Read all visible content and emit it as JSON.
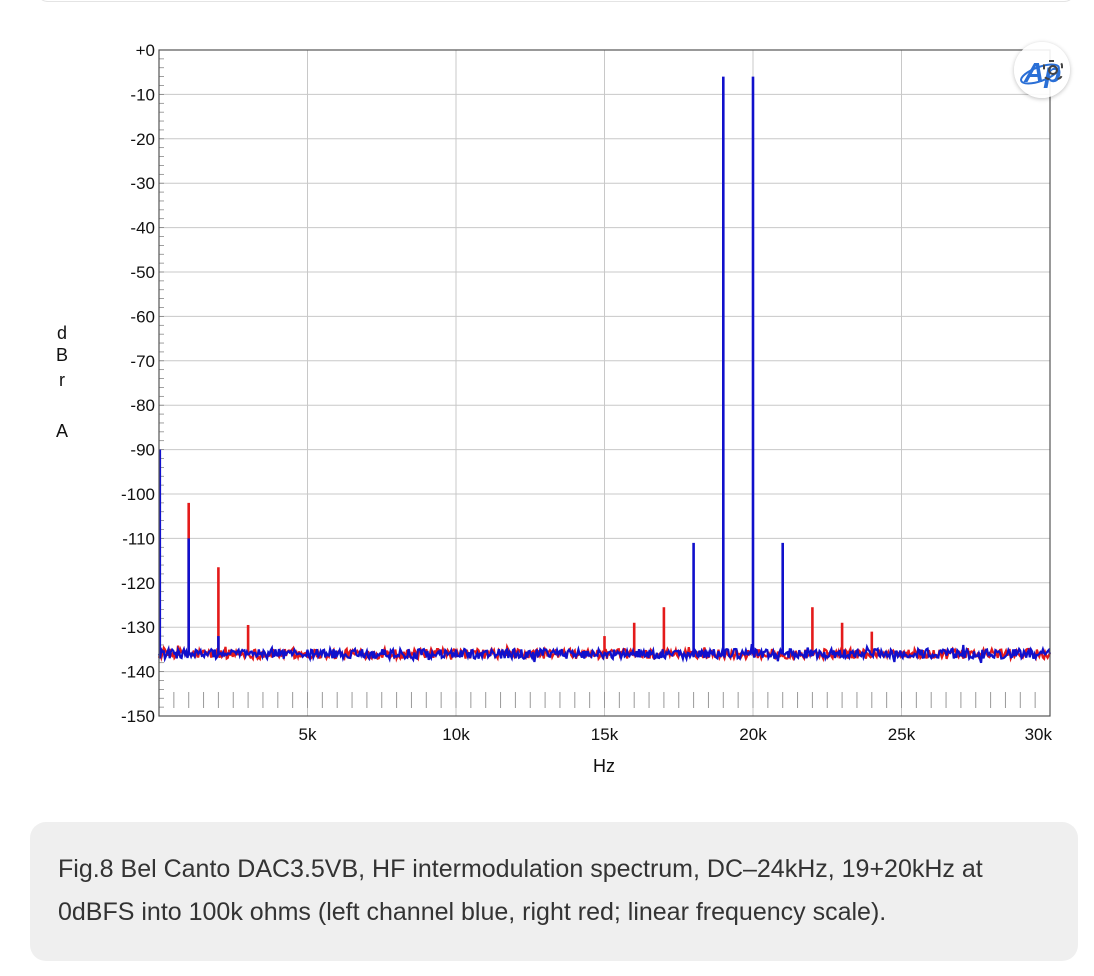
{
  "caption": "Fig.8 Bel Canto DAC3.5VB, HF intermodulation spectrum, DC–24kHz, 19+20kHz at 0dBFS into 100k ohms (left channel blue, right red; linear frequency scale).",
  "logo_text": "Ap",
  "chart_data": {
    "type": "line",
    "title": "",
    "xlabel": "Hz",
    "ylabel": "dBr A",
    "xlim": [
      0,
      30000
    ],
    "ylim": [
      -150,
      0
    ],
    "x_scale": "linear",
    "grid": true,
    "legend": "none",
    "yticks": [
      "+0",
      "-10",
      "-20",
      "-30",
      "-40",
      "-50",
      "-60",
      "-70",
      "-80",
      "-90",
      "-100",
      "-110",
      "-120",
      "-130",
      "-140",
      "-150"
    ],
    "xticks": [
      {
        "value": 5000,
        "label": "5k"
      },
      {
        "value": 10000,
        "label": "10k"
      },
      {
        "value": 15000,
        "label": "15k"
      },
      {
        "value": 20000,
        "label": "20k"
      },
      {
        "value": 25000,
        "label": "25k"
      },
      {
        "value": 30000,
        "label": "30k"
      }
    ],
    "noise_floor_db": -136,
    "series": [
      {
        "channel": "left",
        "color": "#1010cc",
        "dc_level_db": -90,
        "peaks": [
          {
            "x": 1000,
            "y": -110
          },
          {
            "x": 2000,
            "y": -132
          },
          {
            "x": 18000,
            "y": -111
          },
          {
            "x": 19000,
            "y": -6
          },
          {
            "x": 20000,
            "y": -6
          },
          {
            "x": 21000,
            "y": -111
          }
        ]
      },
      {
        "channel": "right",
        "color": "#e41a1a",
        "dc_level_db": -136,
        "peaks": [
          {
            "x": 1000,
            "y": -102
          },
          {
            "x": 2000,
            "y": -116.5
          },
          {
            "x": 3000,
            "y": -129.5
          },
          {
            "x": 15000,
            "y": -132
          },
          {
            "x": 16000,
            "y": -129
          },
          {
            "x": 17000,
            "y": -125.5
          },
          {
            "x": 22000,
            "y": -125.5
          },
          {
            "x": 23000,
            "y": -129
          },
          {
            "x": 24000,
            "y": -131
          }
        ]
      }
    ]
  }
}
